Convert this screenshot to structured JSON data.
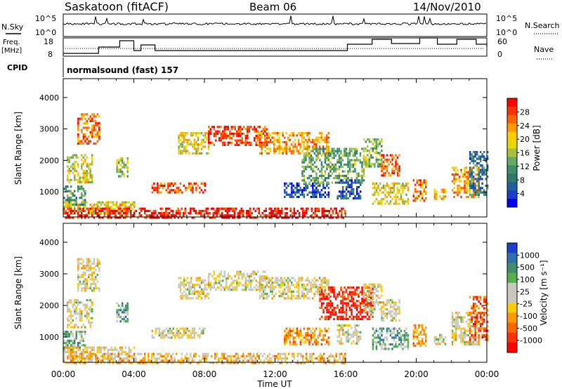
{
  "header": {
    "station": "Saskatoon (fitACF)",
    "beam": "Beam 06",
    "date": "14/Nov/2010"
  },
  "top_panels": {
    "nsky_label": "N.Sky",
    "nsky_ticks": [
      "10^5",
      "10^0"
    ],
    "nsearch_label": "N.Search",
    "nsearch_ticks": [
      "10^5",
      "10^0"
    ],
    "freq_label_line1": "Freq.",
    "freq_label_line2": "[MHz]",
    "freq_ticks": [
      "18",
      "8"
    ],
    "nave_label": "Nave",
    "nave_ticks": [
      "60",
      "0"
    ],
    "cpid_label": "CPID",
    "cpid_text": "normalsound (fast) 157"
  },
  "chart_data": [
    {
      "type": "heatmap",
      "name": "power",
      "ylabel": "Slant Range [km]",
      "yticks": [
        "4000",
        "3000",
        "2000",
        "1000"
      ],
      "ytick_values": [
        4000,
        3000,
        2000,
        1000
      ],
      "ylim": [
        200,
        4600
      ],
      "xlim": [
        0,
        24
      ],
      "colorbar_label": "Power [dB]",
      "colorbar_ticks": [
        "28",
        "24",
        "20",
        "16",
        "12",
        "8",
        "4"
      ],
      "colorbar_colors": [
        "#ff0000",
        "#ff3300",
        "#ff6600",
        "#ff9900",
        "#ffcc00",
        "#e8d800",
        "#a8c040",
        "#66aa66",
        "#3d8f6b",
        "#2e7a6a",
        "#1f5fa0",
        "#1a3fcc",
        "#0000ff"
      ],
      "regions": [
        {
          "t0": 0.0,
          "t1": 1.2,
          "r0": 600,
          "r1": 1200,
          "v": 0.65
        },
        {
          "t0": 0.2,
          "t1": 1.6,
          "r0": 1300,
          "r1": 2200,
          "v": 0.45
        },
        {
          "t0": 0.0,
          "t1": 4.0,
          "r0": 300,
          "r1": 700,
          "v": 0.4
        },
        {
          "t0": 0.8,
          "t1": 2.0,
          "r0": 2500,
          "r1": 3500,
          "v": 0.2
        },
        {
          "t0": 3.0,
          "t1": 3.6,
          "r0": 1500,
          "r1": 2100,
          "v": 0.5
        },
        {
          "t0": 5.0,
          "t1": 8.0,
          "r0": 1000,
          "r1": 1300,
          "v": 0.15
        },
        {
          "t0": 6.5,
          "t1": 8.2,
          "r0": 2200,
          "r1": 2900,
          "v": 0.4
        },
        {
          "t0": 8.2,
          "t1": 11.5,
          "r0": 2500,
          "r1": 3100,
          "v": 0.1
        },
        {
          "t0": 11.0,
          "t1": 15.0,
          "r0": 2200,
          "r1": 2900,
          "v": 0.25
        },
        {
          "t0": 12.5,
          "t1": 15.0,
          "r0": 800,
          "r1": 1300,
          "v": 0.85
        },
        {
          "t0": 13.5,
          "t1": 17.0,
          "r0": 1300,
          "r1": 2400,
          "v": 0.6
        },
        {
          "t0": 15.5,
          "t1": 16.8,
          "r0": 800,
          "r1": 1400,
          "v": 0.8
        },
        {
          "t0": 17.0,
          "t1": 18.0,
          "r0": 1800,
          "r1": 2700,
          "v": 0.55
        },
        {
          "t0": 17.5,
          "t1": 19.5,
          "r0": 600,
          "r1": 1300,
          "v": 0.4
        },
        {
          "t0": 18.0,
          "t1": 19.0,
          "r0": 1500,
          "r1": 2200,
          "v": 0.15
        },
        {
          "t0": 19.8,
          "t1": 20.5,
          "r0": 700,
          "r1": 1400,
          "v": 0.2
        },
        {
          "t0": 21.0,
          "t1": 21.6,
          "r0": 800,
          "r1": 1100,
          "v": 0.35
        },
        {
          "t0": 22.0,
          "t1": 23.5,
          "r0": 800,
          "r1": 1800,
          "v": 0.25
        },
        {
          "t0": 23.0,
          "t1": 24.0,
          "r0": 900,
          "r1": 2300,
          "v": 0.75
        },
        {
          "t0": 0.0,
          "t1": 16.0,
          "r0": 200,
          "r1": 500,
          "v": 0.05
        }
      ]
    },
    {
      "type": "heatmap",
      "name": "velocity",
      "ylabel": "Slant Range [km]",
      "yticks": [
        "4000",
        "3000",
        "2000",
        "1000"
      ],
      "ytick_values": [
        4000,
        3000,
        2000,
        1000
      ],
      "ylim": [
        200,
        4600
      ],
      "xlim": [
        0,
        24
      ],
      "xticks": [
        "00:00",
        "04:00",
        "08:00",
        "12:00",
        "16:00",
        "20:00",
        "00:00"
      ],
      "xtick_values": [
        0,
        4,
        8,
        12,
        16,
        20,
        24
      ],
      "xlabel": "Time UT",
      "colorbar_label": "Velocity [m s⁻¹]",
      "colorbar_ticks": [
        "1000",
        "500",
        "100",
        "25",
        "-25",
        "-100",
        "-500",
        "-1000"
      ],
      "colorbar_colors": [
        "#1a3fcc",
        "#2e6fae",
        "#3d8f6b",
        "#56b04a",
        "#c8c8c0",
        "#c8c8c0",
        "#ffcc00",
        "#ff9900",
        "#ff6600",
        "#ff3300",
        "#ff0000"
      ],
      "regions": [
        {
          "t0": 0.0,
          "t1": 1.2,
          "r0": 600,
          "r1": 1200,
          "v": 0.35
        },
        {
          "t0": 0.2,
          "t1": 1.6,
          "r0": 1300,
          "r1": 2200,
          "v": 0.5
        },
        {
          "t0": 0.0,
          "t1": 4.0,
          "r0": 300,
          "r1": 700,
          "v": 0.55
        },
        {
          "t0": 0.8,
          "t1": 2.0,
          "r0": 2500,
          "r1": 3500,
          "v": 0.5
        },
        {
          "t0": 3.0,
          "t1": 3.6,
          "r0": 1500,
          "r1": 2100,
          "v": 0.3
        },
        {
          "t0": 5.0,
          "t1": 8.0,
          "r0": 1000,
          "r1": 1300,
          "v": 0.5
        },
        {
          "t0": 6.5,
          "t1": 8.2,
          "r0": 2200,
          "r1": 2900,
          "v": 0.5
        },
        {
          "t0": 8.2,
          "t1": 11.5,
          "r0": 2500,
          "r1": 3100,
          "v": 0.5
        },
        {
          "t0": 11.0,
          "t1": 15.0,
          "r0": 2200,
          "r1": 2900,
          "v": 0.5
        },
        {
          "t0": 12.5,
          "t1": 15.0,
          "r0": 800,
          "r1": 1300,
          "v": 0.7
        },
        {
          "t0": 14.5,
          "t1": 17.5,
          "r0": 1600,
          "r1": 2600,
          "v": 0.92
        },
        {
          "t0": 15.5,
          "t1": 16.8,
          "r0": 800,
          "r1": 1400,
          "v": 0.5
        },
        {
          "t0": 17.0,
          "t1": 18.0,
          "r0": 1800,
          "r1": 2700,
          "v": 0.5
        },
        {
          "t0": 17.5,
          "t1": 19.5,
          "r0": 600,
          "r1": 1300,
          "v": 0.3
        },
        {
          "t0": 18.0,
          "t1": 19.0,
          "r0": 1500,
          "r1": 2200,
          "v": 0.5
        },
        {
          "t0": 19.8,
          "t1": 20.5,
          "r0": 700,
          "r1": 1400,
          "v": 0.65
        },
        {
          "t0": 21.0,
          "t1": 21.6,
          "r0": 800,
          "r1": 1100,
          "v": 0.5
        },
        {
          "t0": 22.0,
          "t1": 23.5,
          "r0": 800,
          "r1": 1800,
          "v": 0.5
        },
        {
          "t0": 23.0,
          "t1": 24.0,
          "r0": 900,
          "r1": 2300,
          "v": 0.8
        },
        {
          "t0": 0.0,
          "t1": 16.0,
          "r0": 200,
          "r1": 500,
          "v": 0.6
        }
      ]
    }
  ]
}
